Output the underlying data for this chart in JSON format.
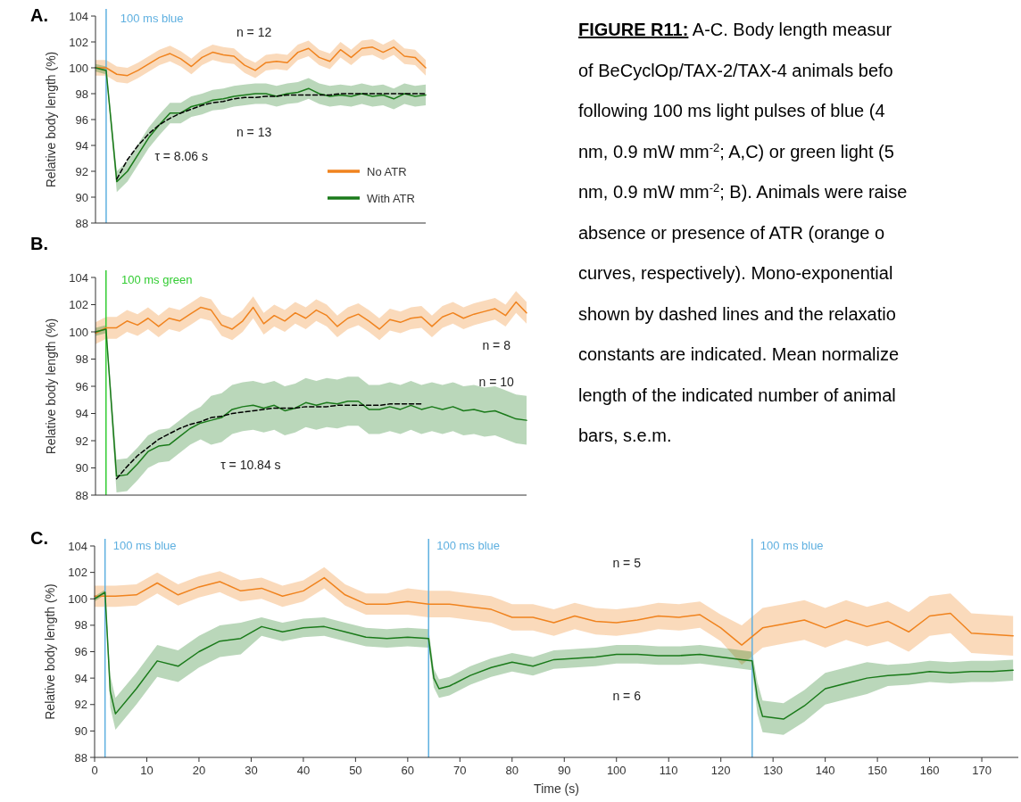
{
  "chart_data": [
    {
      "type": "line",
      "title": "A.",
      "ylabel": "Relative body length (%)",
      "categories": [
        null,
        null,
        null,
        null,
        null,
        null,
        null,
        null,
        null,
        null,
        null,
        null,
        null,
        null,
        null,
        null,
        null,
        null,
        null,
        null,
        null,
        null,
        null,
        null,
        null,
        null,
        null,
        null,
        null,
        null,
        null,
        null
      ],
      "ylim": [
        88,
        104
      ],
      "yticks": [
        88,
        90,
        92,
        94,
        96,
        98,
        100,
        102,
        104
      ],
      "legend": "bottom right",
      "series": [
        {
          "name": "No ATR",
          "color": "#f0831e",
          "values": [
            100,
            100,
            99.5,
            99.4,
            99.8,
            100.3,
            100.8,
            101.1,
            100.7,
            100.1,
            100.8,
            101.2,
            101,
            100.9,
            100.2,
            99.8,
            100.4,
            100.5,
            100.4,
            101.2,
            101.5,
            100.8,
            100.5,
            101.4,
            100.8,
            101.5,
            101.6,
            101.2,
            101.6,
            100.9,
            100.8,
            100
          ],
          "lower": [
            99.4,
            99.4,
            98.9,
            98.8,
            99.2,
            99.7,
            100.2,
            100.5,
            100.1,
            99.5,
            100.2,
            100.6,
            100.4,
            100.3,
            99.6,
            99.2,
            99.8,
            99.9,
            99.8,
            100.6,
            100.9,
            100.2,
            99.9,
            100.8,
            100.2,
            100.9,
            101,
            100.6,
            101,
            100.3,
            100.2,
            99.4
          ],
          "upper": [
            100.6,
            100.6,
            100.1,
            100,
            100.4,
            100.9,
            101.4,
            101.7,
            101.3,
            100.7,
            101.4,
            101.8,
            101.6,
            101.5,
            100.8,
            100.4,
            101,
            101.1,
            101,
            101.8,
            102.1,
            101.4,
            101.1,
            102,
            101.4,
            102.1,
            102.2,
            101.8,
            102.2,
            101.5,
            101.4,
            100.6
          ]
        },
        {
          "name": "With ATR",
          "color": "#1a7a1a",
          "values": [
            100,
            99.8,
            91.2,
            92,
            93.3,
            94.6,
            95.6,
            96.5,
            96.5,
            97,
            97.2,
            97.5,
            97.6,
            97.8,
            97.9,
            98,
            98,
            97.8,
            98,
            98.1,
            98.4,
            98,
            97.8,
            97.9,
            97.8,
            98,
            97.8,
            97.9,
            97.6,
            98,
            97.8,
            97.9
          ],
          "lower": [
            99.7,
            99.5,
            90.4,
            91.2,
            92.5,
            93.8,
            94.8,
            95.7,
            95.7,
            96.2,
            96.4,
            96.7,
            96.8,
            97,
            97.1,
            97.2,
            97.2,
            97,
            97.2,
            97.3,
            97.6,
            97.2,
            97,
            97.1,
            97,
            97.2,
            97,
            97.1,
            96.8,
            97.2,
            97,
            97.1
          ],
          "upper": [
            100.3,
            100.1,
            92,
            92.8,
            94.1,
            95.4,
            96.4,
            97.3,
            97.3,
            97.8,
            98,
            98.3,
            98.4,
            98.6,
            98.7,
            98.8,
            98.8,
            98.6,
            98.8,
            98.9,
            99.2,
            98.8,
            98.6,
            98.7,
            98.6,
            98.8,
            98.6,
            98.7,
            98.4,
            98.8,
            98.6,
            98.7
          ]
        },
        {
          "type": "line",
          "color": "#000000",
          "line_style": "dashed",
          "values": [
            null,
            null,
            91.4,
            92.9,
            94,
            94.9,
            95.6,
            96.1,
            96.5,
            96.8,
            97.1,
            97.3,
            97.4,
            97.6,
            97.7,
            97.7,
            97.8,
            97.8,
            97.9,
            97.9,
            97.9,
            97.9,
            97.9,
            98,
            98,
            98,
            98,
            98,
            98,
            98,
            98,
            98
          ]
        }
      ],
      "annotations": [
        "100 ms blue",
        "n = 12",
        "n = 13",
        "τ = 8.06 s"
      ]
    },
    {
      "type": "line",
      "title": "B.",
      "ylabel": "Relative body length (%)",
      "categories": [
        null,
        null,
        null,
        null,
        null,
        null,
        null,
        null,
        null,
        null,
        null,
        null,
        null,
        null,
        null,
        null,
        null,
        null,
        null,
        null,
        null,
        null,
        null,
        null,
        null,
        null,
        null,
        null,
        null,
        null,
        null,
        null,
        null,
        null,
        null,
        null,
        null,
        null,
        null,
        null,
        null,
        null
      ],
      "ylim": [
        88,
        104
      ],
      "yticks": [
        88,
        90,
        92,
        94,
        96,
        98,
        100,
        102,
        104
      ],
      "series": [
        {
          "color": "#f0831e",
          "values": [
            99.9,
            100.3,
            100.3,
            100.8,
            100.5,
            101,
            100.4,
            101,
            100.8,
            101.3,
            101.8,
            101.6,
            100.5,
            100.2,
            100.8,
            101.8,
            100.6,
            101.2,
            100.8,
            101.4,
            101,
            101.6,
            101.2,
            100.4,
            101,
            101.3,
            100.8,
            100.2,
            100.9,
            100.7,
            101,
            101.1,
            100.4,
            101.1,
            101.4,
            101,
            101.3,
            101.5,
            101.7,
            101.2,
            102.2,
            101.4
          ],
          "lower": [
            99.1,
            99.5,
            99.5,
            100,
            99.7,
            100.2,
            99.6,
            100.2,
            100,
            100.5,
            101,
            100.8,
            99.7,
            99.4,
            100,
            101,
            99.8,
            100.4,
            100,
            100.6,
            100.2,
            100.8,
            100.4,
            99.6,
            100.2,
            100.5,
            100,
            99.4,
            100.1,
            99.9,
            100.2,
            100.3,
            99.6,
            100.3,
            100.6,
            100.2,
            100.5,
            100.7,
            100.9,
            100.4,
            101.4,
            100.6
          ],
          "upper": [
            100.7,
            101.1,
            101.1,
            101.6,
            101.3,
            101.8,
            101.2,
            101.8,
            101.6,
            102.1,
            102.6,
            102.4,
            101.3,
            101,
            101.6,
            102.6,
            101.4,
            102,
            101.6,
            102.2,
            101.8,
            102.4,
            102,
            101.2,
            101.8,
            102.1,
            101.6,
            101,
            101.7,
            101.5,
            101.8,
            101.9,
            101.2,
            101.9,
            102.2,
            101.8,
            102.1,
            102.3,
            102.5,
            102,
            103,
            102.2
          ]
        },
        {
          "color": "#1a7a1a",
          "values": [
            100,
            100.2,
            89.4,
            89.5,
            90.3,
            91.2,
            91.6,
            91.7,
            92.3,
            92.9,
            93.3,
            93.5,
            93.7,
            94.3,
            94.5,
            94.6,
            94.4,
            94.6,
            94.2,
            94.4,
            94.8,
            94.6,
            94.8,
            94.7,
            94.9,
            94.9,
            94.3,
            94.3,
            94.5,
            94.3,
            94.6,
            94.3,
            94.5,
            94.3,
            94.5,
            94.2,
            94.3,
            94.1,
            94.2,
            93.9,
            93.6,
            93.5
          ],
          "lower": [
            99.7,
            99.9,
            88.2,
            88.3,
            89.1,
            90,
            90.4,
            90.5,
            91.1,
            91.7,
            92.1,
            91.7,
            91.9,
            92.5,
            92.7,
            92.8,
            92.6,
            92.8,
            92.4,
            92.6,
            93,
            92.8,
            93,
            92.9,
            93.1,
            93.1,
            92.5,
            92.5,
            92.7,
            92.5,
            92.8,
            92.5,
            92.7,
            92.5,
            92.7,
            92.4,
            92.5,
            92.3,
            92.4,
            92.1,
            91.8,
            91.7
          ],
          "upper": [
            100.3,
            100.5,
            90.6,
            90.7,
            91.5,
            92.4,
            92.8,
            92.9,
            93.5,
            94.1,
            94.5,
            95.3,
            95.5,
            96.1,
            96.3,
            96.4,
            96.2,
            96.4,
            96,
            96.2,
            96.6,
            96.4,
            96.6,
            96.5,
            96.7,
            96.7,
            96.1,
            96.1,
            96.3,
            96.1,
            96.4,
            96.1,
            96.3,
            96.1,
            96.3,
            96,
            96.1,
            95.9,
            96,
            95.7,
            95.4,
            95.3
          ]
        },
        {
          "type": "line",
          "color": "#000000",
          "line_style": "dashed",
          "values": [
            null,
            null,
            89.2,
            90.1,
            90.9,
            91.5,
            92.1,
            92.5,
            92.9,
            93.2,
            93.4,
            93.7,
            93.8,
            94,
            94.1,
            94.2,
            94.3,
            94.4,
            94.4,
            94.4,
            94.5,
            94.5,
            94.5,
            94.6,
            94.6,
            94.6,
            94.6,
            94.6,
            94.7,
            94.7,
            94.7,
            94.7,
            null,
            null,
            null,
            null,
            null,
            null,
            null,
            null,
            null,
            null
          ]
        }
      ],
      "annotations": [
        "100 ms green",
        "n = 8",
        "n = 10",
        "τ = 10.84 s"
      ]
    },
    {
      "type": "line",
      "title": "C.",
      "xlabel": "Time (s)",
      "ylabel": "Relative body length (%)",
      "xlim": [
        0,
        177
      ],
      "xticks": [
        0,
        10,
        20,
        30,
        40,
        50,
        60,
        70,
        80,
        90,
        100,
        110,
        120,
        130,
        140,
        150,
        160,
        170
      ],
      "ylim": [
        88,
        104
      ],
      "yticks": [
        88,
        90,
        92,
        94,
        96,
        98,
        100,
        102,
        104
      ],
      "series": [
        {
          "color": "#f0831e",
          "x": [
            0,
            4,
            8,
            12,
            16,
            20,
            24,
            28,
            32,
            36,
            40,
            44,
            48,
            52,
            56,
            60,
            64,
            68,
            72,
            76,
            80,
            84,
            88,
            92,
            96,
            100,
            104,
            108,
            112,
            116,
            120,
            124,
            128,
            132,
            136,
            140,
            144,
            148,
            152,
            156,
            160,
            164,
            168,
            172,
            176
          ],
          "values": [
            100.2,
            100.2,
            100.3,
            101.2,
            100.3,
            100.9,
            101.3,
            100.6,
            100.8,
            100.2,
            100.6,
            101.6,
            100.3,
            99.6,
            99.6,
            99.8,
            99.6,
            99.6,
            99.4,
            99.2,
            98.6,
            98.6,
            98.2,
            98.7,
            98.3,
            98.2,
            98.4,
            98.7,
            98.6,
            98.8,
            97.8,
            96.5,
            97.8,
            98.1,
            98.4,
            97.8,
            98.4,
            97.9,
            98.3,
            97.5,
            98.7,
            98.9,
            97.4,
            97.3,
            97.2
          ],
          "lower": [
            99.4,
            99.4,
            99.5,
            100.4,
            99.5,
            100.1,
            100.5,
            99.8,
            100,
            99.4,
            99.8,
            100.8,
            99.5,
            98.8,
            98.8,
            98.8,
            98.6,
            98.6,
            98.4,
            98.2,
            97.6,
            97.6,
            97.2,
            97.7,
            97.3,
            97.2,
            97.4,
            97.7,
            97.6,
            97.8,
            96.8,
            95,
            96.3,
            96.6,
            96.9,
            96.3,
            96.9,
            96.4,
            96.8,
            96,
            97.2,
            97.4,
            95.9,
            95.8,
            95.7
          ],
          "upper": [
            101,
            101,
            101.1,
            102,
            101.1,
            101.7,
            102.1,
            101.4,
            101.6,
            101,
            101.4,
            102.4,
            101.1,
            100.4,
            100.4,
            100.8,
            100.6,
            100.6,
            100.4,
            100.2,
            99.6,
            99.6,
            99.2,
            99.7,
            99.3,
            99.2,
            99.4,
            99.7,
            99.6,
            99.8,
            98.8,
            98,
            99.3,
            99.6,
            99.9,
            99.3,
            99.9,
            99.4,
            99.8,
            99,
            100.2,
            100.4,
            98.9,
            98.8,
            98.7
          ]
        },
        {
          "color": "#1a7a1a",
          "x": [
            0,
            2,
            3,
            4,
            8,
            12,
            16,
            20,
            24,
            28,
            32,
            36,
            40,
            44,
            48,
            52,
            56,
            60,
            64,
            65,
            66,
            68,
            72,
            76,
            80,
            84,
            88,
            92,
            96,
            100,
            104,
            108,
            112,
            116,
            120,
            124,
            126,
            127,
            128,
            132,
            136,
            140,
            144,
            148,
            152,
            156,
            160,
            164,
            168,
            172,
            176
          ],
          "values": [
            100,
            100.5,
            93,
            91.3,
            93.2,
            95.3,
            94.9,
            96,
            96.8,
            97,
            97.9,
            97.5,
            97.8,
            97.9,
            97.5,
            97.1,
            97,
            97.1,
            97,
            94,
            93.2,
            93.4,
            94.2,
            94.8,
            95.2,
            94.9,
            95.4,
            95.5,
            95.6,
            95.8,
            95.8,
            95.7,
            95.7,
            95.8,
            95.6,
            95.4,
            95.3,
            92.5,
            91.1,
            90.9,
            91.9,
            93.2,
            93.6,
            94,
            94.2,
            94.3,
            94.5,
            94.4,
            94.5,
            94.5,
            94.6
          ],
          "lower": [
            99.8,
            100.3,
            91.8,
            90.1,
            92,
            94.1,
            93.7,
            94.8,
            95.6,
            95.8,
            97.2,
            96.8,
            97.1,
            97.2,
            96.8,
            96.4,
            96.3,
            96.4,
            96.3,
            93.3,
            92.5,
            92.7,
            93.5,
            94.1,
            94.5,
            94.2,
            94.7,
            94.8,
            94.9,
            95.1,
            95.1,
            95,
            95,
            95.1,
            94.9,
            94.7,
            94.6,
            91.3,
            89.9,
            89.7,
            90.7,
            92,
            92.4,
            92.8,
            93.4,
            93.5,
            93.7,
            93.6,
            93.7,
            93.7,
            93.8
          ],
          "upper": [
            100.2,
            100.7,
            94.2,
            92.5,
            94.4,
            96.5,
            96.1,
            97.2,
            98,
            98.2,
            98.6,
            98.2,
            98.5,
            98.6,
            98.2,
            97.8,
            97.7,
            97.8,
            97.7,
            94.7,
            93.9,
            94.1,
            94.9,
            95.5,
            95.9,
            95.6,
            96.1,
            96.2,
            96.3,
            96.5,
            96.5,
            96.4,
            96.4,
            96.5,
            96.3,
            96.1,
            96,
            93.7,
            92.3,
            92.1,
            93.1,
            94.4,
            94.8,
            95.2,
            95,
            95.1,
            95.3,
            95.2,
            95.3,
            95.3,
            95.4
          ]
        }
      ],
      "ref_lines": [
        {
          "axis": "x",
          "value": 2,
          "label": "100 ms blue",
          "color": "#5fb0e0"
        },
        {
          "axis": "x",
          "value": 64,
          "label": "100 ms blue",
          "color": "#5fb0e0"
        },
        {
          "axis": "x",
          "value": 126,
          "label": "100 ms blue",
          "color": "#5fb0e0"
        }
      ],
      "annotations": [
        "n = 5",
        "n = 6"
      ]
    },
    {
      "type": "other",
      "title": "FIGURE R11:",
      "annotations": [
        "A-C. Body length measur",
        "of BeCyclOp/TAX-2/TAX-4 animals befo",
        "following 100 ms light pulses of blue (4",
        "nm, 0.9 mW mm$^{-2}$; A,C) or green light (5",
        "nm, 0.9 mW mm$^{-2}$; B). Animals were raise",
        "absence or presence of ATR (orange o",
        "curves, respectively). Mono-exponential",
        "shown by dashed lines and the relaxatio",
        "constants are indicated. Mean normalize",
        "length of the indicated number of animal",
        "bars, s.e.m."
      ]
    }
  ]
}
